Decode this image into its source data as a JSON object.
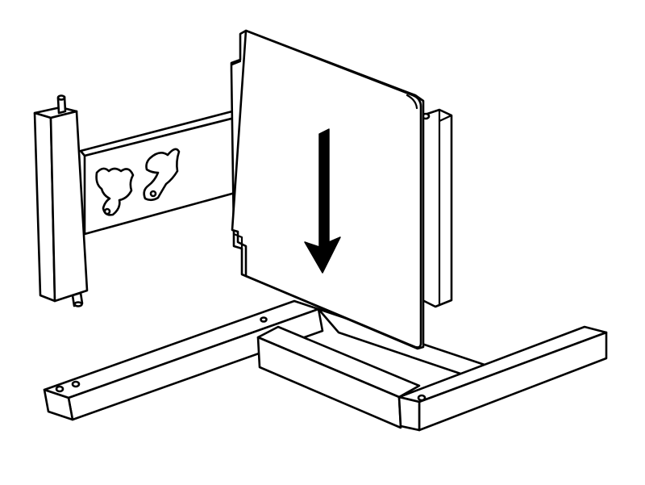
{
  "diagram": {
    "kind": "assembly-instruction",
    "line_color": "#000000",
    "fill_color": "#ffffff",
    "parts": [
      "base-long-rail",
      "base-short-rail",
      "left-upright-post",
      "horizontal-board-with-animal-cutouts",
      "back-upright-post",
      "front-panel"
    ],
    "indicator": "down-arrow-icon",
    "cutout_shapes": [
      "dog-silhouette",
      "horse-silhouette"
    ]
  }
}
